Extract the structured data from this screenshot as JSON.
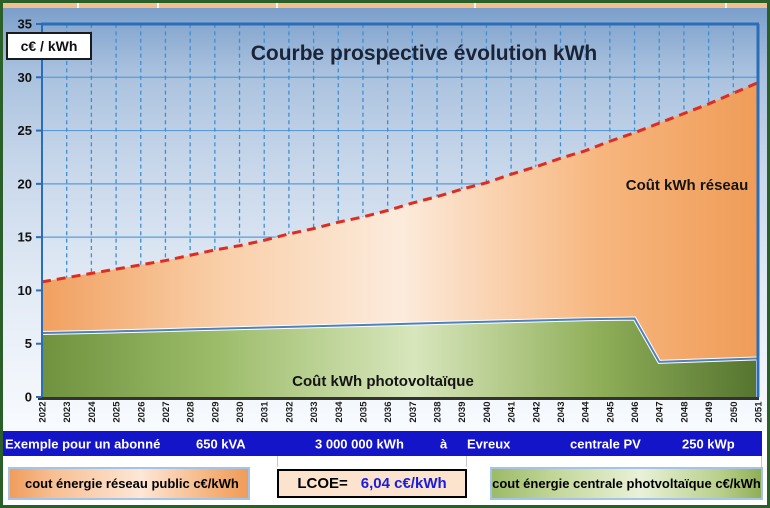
{
  "chart": {
    "title": "Courbe prospective évolution kWh",
    "unit_label": "c€ / kWh",
    "reseau_area_label": "Coût kWh réseau",
    "pv_area_label": "Coût kWh photovoltaïque"
  },
  "chart_data": {
    "type": "area",
    "title": "Courbe prospective évolution kWh",
    "ylabel": "c€ / kWh",
    "xlabel": "",
    "ylim": [
      0,
      35
    ],
    "yticks": [
      0,
      5,
      10,
      15,
      20,
      25,
      30,
      35
    ],
    "grid": true,
    "legend_position": "labels-inside-plot",
    "x": [
      2022,
      2023,
      2024,
      2025,
      2026,
      2027,
      2028,
      2029,
      2030,
      2031,
      2032,
      2033,
      2034,
      2035,
      2036,
      2037,
      2038,
      2039,
      2040,
      2041,
      2042,
      2043,
      2044,
      2045,
      2046,
      2047,
      2048,
      2049,
      2050,
      2051
    ],
    "series": [
      {
        "name": "Coût kWh réseau",
        "style": "orange area with thick red dashed top line",
        "values": [
          10.8,
          11.2,
          11.6,
          12.0,
          12.4,
          12.8,
          13.3,
          13.8,
          14.2,
          14.7,
          15.3,
          15.8,
          16.4,
          16.9,
          17.5,
          18.2,
          18.8,
          19.5,
          20.1,
          20.9,
          21.6,
          22.4,
          23.1,
          24.0,
          24.8,
          25.7,
          26.6,
          27.5,
          28.5,
          29.5
        ]
      },
      {
        "name": "Coût kWh photovoltaïque",
        "style": "green area with thin blue top line",
        "values": [
          6.0,
          6.05,
          6.1,
          6.16,
          6.22,
          6.28,
          6.34,
          6.4,
          6.46,
          6.52,
          6.58,
          6.64,
          6.7,
          6.76,
          6.82,
          6.88,
          6.94,
          7.0,
          7.06,
          7.12,
          7.18,
          7.24,
          7.3,
          7.33,
          7.36,
          3.3,
          3.38,
          3.46,
          3.54,
          3.62
        ]
      }
    ]
  },
  "banner": {
    "items": [
      "Exemple pour un abonné",
      "650 kVA",
      "3 000 000 kWh",
      "à",
      "Evreux",
      "centrale PV",
      "250 kWp"
    ]
  },
  "legend": {
    "reseau_box_label": "cout énergie réseau public c€/kWh",
    "lcoe_label": "LCOE=",
    "lcoe_value": "6,04 c€/kWh",
    "pv_box_label": "cout énergie centrale photvoltaïque c€/kWh"
  },
  "colors": {
    "frame_border": "#2a5f2a",
    "top_strip": "#f1c08e",
    "banner_bg": "#1414c8",
    "red_dashed_line": "#e02b20",
    "pv_line": "#4f81bd",
    "plot_border": "#2a6db8",
    "lcoe_value_text": "#1a1ae0"
  }
}
